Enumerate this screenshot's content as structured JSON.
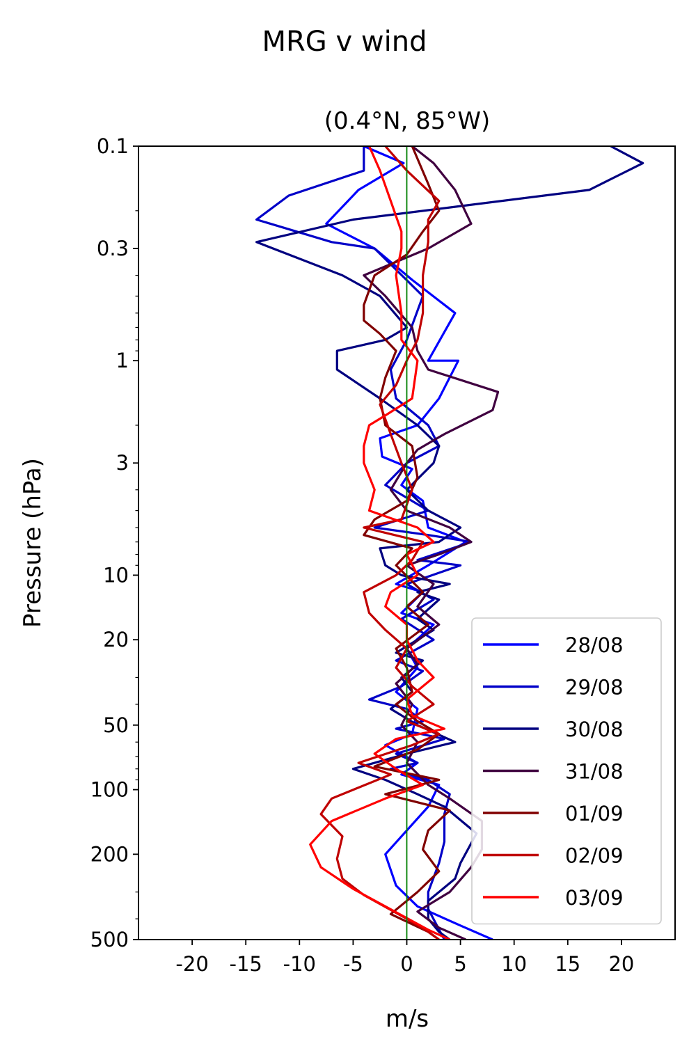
{
  "figure_title": "MRG v wind",
  "chart_data": {
    "type": "line",
    "title": "(0.4°N, 85°W)",
    "xlabel": "m/s",
    "ylabel": "Pressure (hPa)",
    "xlim": [
      -25,
      25
    ],
    "ylim": [
      500,
      0.1
    ],
    "y_scale": "log",
    "y_inverted": true,
    "x_ticks": [
      -20,
      -15,
      -10,
      -5,
      0,
      5,
      10,
      15,
      20
    ],
    "x_tick_labels": [
      "-20",
      "-15",
      "-10",
      "-5",
      "0",
      "5",
      "10",
      "15",
      "20"
    ],
    "y_ticks": [
      0.1,
      0.3,
      1,
      3,
      10,
      20,
      50,
      100,
      200,
      500
    ],
    "y_tick_labels": [
      "0.1",
      "0.3",
      "1",
      "3",
      "10",
      "20",
      "50",
      "100",
      "200",
      "500"
    ],
    "reference_line": {
      "x": 0,
      "color": "#008000"
    },
    "legend_position": "lower-right",
    "grid": false,
    "series": [
      {
        "name": "28/08",
        "color": "#0000ff",
        "points": [
          [
            -4,
            0.1
          ],
          [
            -0.3,
            0.12
          ],
          [
            -4.5,
            0.16
          ],
          [
            -7.5,
            0.23
          ],
          [
            -3,
            0.3
          ],
          [
            0.5,
            0.42
          ],
          [
            4.5,
            0.6
          ],
          [
            2,
            1
          ],
          [
            4.8,
            1
          ],
          [
            3,
            1.5
          ],
          [
            1,
            2
          ],
          [
            -2.5,
            2.3
          ],
          [
            -2.3,
            2.8
          ],
          [
            0.5,
            3.2
          ],
          [
            -0.5,
            3.8
          ],
          [
            1.5,
            4.5
          ],
          [
            2,
            6
          ],
          [
            5.5,
            7
          ],
          [
            2,
            9
          ],
          [
            -1,
            11
          ],
          [
            1.5,
            12
          ],
          [
            -0.5,
            15
          ],
          [
            2.5,
            17
          ],
          [
            0,
            22
          ],
          [
            1,
            27
          ],
          [
            -1,
            35
          ],
          [
            1,
            42
          ],
          [
            0.5,
            55
          ],
          [
            -2,
            62
          ],
          [
            1,
            75
          ],
          [
            -0.5,
            85
          ],
          [
            3,
            95
          ],
          [
            2,
            120
          ],
          [
            0,
            155
          ],
          [
            -2,
            200
          ],
          [
            -1,
            280
          ],
          [
            1,
            350
          ],
          [
            5,
            430
          ],
          [
            8,
            500
          ]
        ]
      },
      {
        "name": "29/08",
        "color": "#0000c8",
        "points": [
          [
            -4,
            0.1
          ],
          [
            -4,
            0.13
          ],
          [
            -11,
            0.17
          ],
          [
            -14,
            0.22
          ],
          [
            -7,
            0.28
          ],
          [
            -3,
            0.3
          ],
          [
            1.5,
            0.5
          ],
          [
            0,
            0.8
          ],
          [
            -1.5,
            1.1
          ],
          [
            -1,
            1.5
          ],
          [
            2,
            2
          ],
          [
            3,
            2.5
          ],
          [
            0,
            3
          ],
          [
            -2,
            3.8
          ],
          [
            2,
            5
          ],
          [
            -3,
            6
          ],
          [
            2,
            6.5
          ],
          [
            6,
            7
          ],
          [
            1,
            8.5
          ],
          [
            5,
            9
          ],
          [
            0,
            11
          ],
          [
            2.5,
            13
          ],
          [
            -0.5,
            16
          ],
          [
            2.5,
            20
          ],
          [
            -1,
            25
          ],
          [
            1.5,
            28
          ],
          [
            -0.5,
            33
          ],
          [
            -3.5,
            38
          ],
          [
            0,
            42
          ],
          [
            1.5,
            48
          ],
          [
            -1,
            52
          ],
          [
            3.5,
            58
          ],
          [
            -1,
            68
          ],
          [
            1,
            75
          ],
          [
            -1.5,
            80
          ],
          [
            2,
            90
          ],
          [
            4,
            105
          ],
          [
            3.5,
            130
          ],
          [
            3.5,
            175
          ],
          [
            3,
            220
          ],
          [
            2,
            300
          ],
          [
            2,
            360
          ],
          [
            3.5,
            500
          ]
        ]
      },
      {
        "name": "30/08",
        "color": "#000080",
        "points": [
          [
            19,
            0.1
          ],
          [
            22,
            0.12
          ],
          [
            17,
            0.16
          ],
          [
            -5,
            0.22
          ],
          [
            -14,
            0.28
          ],
          [
            -6,
            0.4
          ],
          [
            -2.5,
            0.5
          ],
          [
            0,
            0.7
          ],
          [
            -2,
            0.8
          ],
          [
            -6.5,
            0.9
          ],
          [
            -6.5,
            1.1
          ],
          [
            -2.5,
            1.5
          ],
          [
            1,
            2
          ],
          [
            3,
            2.5
          ],
          [
            2.5,
            3
          ],
          [
            0,
            4
          ],
          [
            2,
            5
          ],
          [
            5,
            6
          ],
          [
            3,
            7
          ],
          [
            -2.5,
            7.5
          ],
          [
            -2,
            9
          ],
          [
            -0.5,
            10
          ],
          [
            4,
            11
          ],
          [
            1,
            12
          ],
          [
            3,
            13
          ],
          [
            1,
            16
          ],
          [
            2.5,
            18
          ],
          [
            -1,
            23
          ],
          [
            1.5,
            25
          ],
          [
            -0.5,
            30
          ],
          [
            0.5,
            35
          ],
          [
            -1.5,
            42
          ],
          [
            1,
            50
          ],
          [
            4.5,
            60
          ],
          [
            0,
            68
          ],
          [
            -5,
            80
          ],
          [
            -2,
            90
          ],
          [
            1,
            105
          ],
          [
            3.5,
            120
          ],
          [
            6.5,
            160
          ],
          [
            5,
            220
          ],
          [
            4.5,
            260
          ],
          [
            2,
            330
          ],
          [
            2,
            400
          ],
          [
            3,
            460
          ],
          [
            4,
            500
          ]
        ]
      },
      {
        "name": "31/08",
        "color": "#400040",
        "points": [
          [
            0.5,
            0.1
          ],
          [
            2.5,
            0.12
          ],
          [
            4.5,
            0.16
          ],
          [
            6,
            0.23
          ],
          [
            2,
            0.3
          ],
          [
            -4,
            0.4
          ],
          [
            -2,
            0.5
          ],
          [
            0.5,
            0.7
          ],
          [
            1,
            0.9
          ],
          [
            2,
            1.1
          ],
          [
            8.5,
            1.4
          ],
          [
            8,
            1.7
          ],
          [
            3.5,
            2.2
          ],
          [
            1,
            2.6
          ],
          [
            0,
            3
          ],
          [
            -1.5,
            4
          ],
          [
            0,
            5
          ],
          [
            4,
            6
          ],
          [
            6,
            7
          ],
          [
            3,
            8
          ],
          [
            0,
            9
          ],
          [
            2.5,
            11
          ],
          [
            1,
            14
          ],
          [
            3,
            17
          ],
          [
            0,
            22
          ],
          [
            1,
            26
          ],
          [
            -1,
            32
          ],
          [
            0.5,
            40
          ],
          [
            -0.5,
            50
          ],
          [
            1,
            60
          ],
          [
            0,
            75
          ],
          [
            2,
            95
          ],
          [
            4,
            110
          ],
          [
            7,
            140
          ],
          [
            7,
            190
          ],
          [
            6,
            230
          ],
          [
            4,
            300
          ],
          [
            1,
            370
          ],
          [
            3,
            440
          ],
          [
            5.5,
            500
          ]
        ]
      },
      {
        "name": "01/09",
        "color": "#800000",
        "points": [
          [
            0.5,
            0.1
          ],
          [
            2,
            0.15
          ],
          [
            3,
            0.2
          ],
          [
            1.5,
            0.25
          ],
          [
            0,
            0.32
          ],
          [
            -3,
            0.4
          ],
          [
            -4,
            0.55
          ],
          [
            -4,
            0.65
          ],
          [
            -2.5,
            0.75
          ],
          [
            -1,
            0.9
          ],
          [
            -2,
            1.2
          ],
          [
            -2.5,
            1.5
          ],
          [
            -2,
            2
          ],
          [
            0.5,
            2.5
          ],
          [
            1,
            3.5
          ],
          [
            0,
            4.5
          ],
          [
            -3,
            5.5
          ],
          [
            -4,
            6.5
          ],
          [
            0.5,
            7.5
          ],
          [
            -1,
            9
          ],
          [
            1.5,
            12
          ],
          [
            0,
            14
          ],
          [
            2,
            17
          ],
          [
            -1,
            22
          ],
          [
            0,
            27
          ],
          [
            0.5,
            35
          ],
          [
            -1,
            40
          ],
          [
            1,
            48
          ],
          [
            3,
            55
          ],
          [
            1,
            65
          ],
          [
            -3,
            78
          ],
          [
            3,
            90
          ],
          [
            -2,
            105
          ],
          [
            4,
            125
          ],
          [
            2,
            155
          ],
          [
            1.5,
            190
          ],
          [
            3,
            240
          ],
          [
            1,
            300
          ],
          [
            -1.5,
            380
          ],
          [
            2,
            460
          ],
          [
            3,
            500
          ]
        ]
      },
      {
        "name": "02/09",
        "color": "#c00000",
        "points": [
          [
            -2,
            0.1
          ],
          [
            0,
            0.13
          ],
          [
            3,
            0.18
          ],
          [
            2,
            0.22
          ],
          [
            2,
            0.28
          ],
          [
            1.5,
            0.4
          ],
          [
            1.5,
            0.6
          ],
          [
            1,
            0.8
          ],
          [
            0,
            1
          ],
          [
            -1,
            1.3
          ],
          [
            -2.5,
            1.6
          ],
          [
            -1.5,
            2.2
          ],
          [
            -0.5,
            3
          ],
          [
            0.5,
            4
          ],
          [
            -0.5,
            5.5
          ],
          [
            -4,
            6
          ],
          [
            1.5,
            7
          ],
          [
            0.5,
            8.5
          ],
          [
            -1,
            10
          ],
          [
            -4,
            12
          ],
          [
            -3.5,
            15
          ],
          [
            -2,
            18
          ],
          [
            0,
            22
          ],
          [
            -1,
            27
          ],
          [
            0.5,
            33
          ],
          [
            2.5,
            40
          ],
          [
            0,
            48
          ],
          [
            3,
            55
          ],
          [
            0.5,
            62
          ],
          [
            -4.5,
            75
          ],
          [
            -1.5,
            85
          ],
          [
            -7,
            110
          ],
          [
            -8,
            130
          ],
          [
            -6,
            165
          ],
          [
            -6.5,
            210
          ],
          [
            -6,
            260
          ],
          [
            -4,
            310
          ],
          [
            0,
            400
          ],
          [
            2,
            460
          ],
          [
            3,
            500
          ]
        ]
      },
      {
        "name": "03/09",
        "color": "#ff0000",
        "points": [
          [
            -3.5,
            0.1
          ],
          [
            -2.5,
            0.13
          ],
          [
            -1.5,
            0.18
          ],
          [
            -0.5,
            0.25
          ],
          [
            -0.5,
            0.3
          ],
          [
            -1,
            0.4
          ],
          [
            -0.5,
            0.6
          ],
          [
            -0.5,
            0.8
          ],
          [
            1,
            1
          ],
          [
            0.5,
            1.5
          ],
          [
            -2,
            1.8
          ],
          [
            -3.5,
            2
          ],
          [
            -4,
            2.5
          ],
          [
            -4,
            3
          ],
          [
            -3,
            4
          ],
          [
            -3.5,
            5
          ],
          [
            1,
            6
          ],
          [
            2.5,
            7
          ],
          [
            0,
            8
          ],
          [
            1,
            10
          ],
          [
            -1.5,
            12
          ],
          [
            -2,
            14
          ],
          [
            0,
            17
          ],
          [
            0,
            20
          ],
          [
            1,
            25
          ],
          [
            2.5,
            30
          ],
          [
            0,
            38
          ],
          [
            0.5,
            45
          ],
          [
            3.5,
            52
          ],
          [
            -1,
            58
          ],
          [
            -3,
            68
          ],
          [
            -1,
            80
          ],
          [
            1.5,
            95
          ],
          [
            -2,
            110
          ],
          [
            -7,
            140
          ],
          [
            -9,
            180
          ],
          [
            -8,
            230
          ],
          [
            -5,
            290
          ],
          [
            -2,
            350
          ],
          [
            2,
            450
          ],
          [
            4,
            500
          ]
        ]
      }
    ]
  }
}
